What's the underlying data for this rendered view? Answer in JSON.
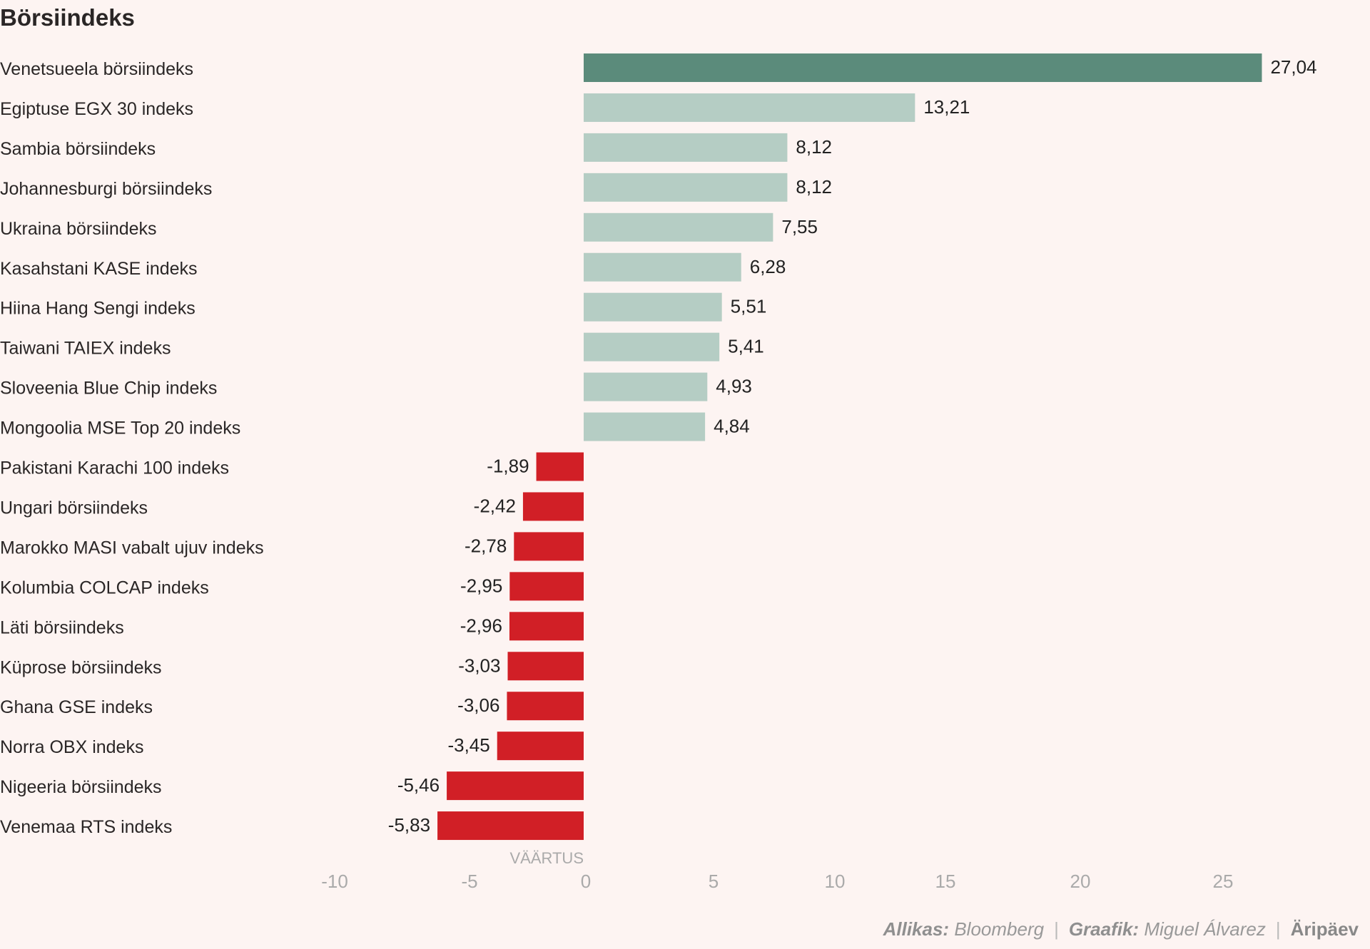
{
  "chart_data": {
    "type": "bar",
    "orientation": "horizontal",
    "title": "Börsiindeks",
    "xlabel": "VÄÄRTUS",
    "ylabel": "",
    "xlim": [
      -10,
      27.04
    ],
    "x_ticks": [
      "-10",
      "-5",
      "0",
      "5",
      "10",
      "15",
      "20",
      "25"
    ],
    "grid": false,
    "categories": [
      "Venetsueela börsiindeks",
      "Egiptuse EGX 30 indeks",
      "Sambia börsiindeks",
      "Johannesburgi börsiindeks",
      "Ukraina börsiindeks",
      "Kasahstani KASE indeks",
      "Hiina Hang Sengi indeks",
      "Taiwani TAIEX indeks",
      "Sloveenia Blue Chip indeks",
      "Mongoolia MSE Top 20 indeks",
      "Pakistani Karachi 100 indeks",
      "Ungari börsiindeks",
      "Marokko MASI vabalt ujuv indeks",
      "Kolumbia COLCAP indeks",
      "Läti börsiindeks",
      "Küprose börsiindeks",
      "Ghana GSE indeks",
      "Norra OBX indeks",
      "Nigeeria börsiindeks",
      "Venemaa RTS indeks"
    ],
    "values": [
      27.04,
      13.21,
      8.12,
      8.12,
      7.55,
      6.28,
      5.51,
      5.41,
      4.93,
      4.84,
      -1.89,
      -2.42,
      -2.78,
      -2.95,
      -2.96,
      -3.03,
      -3.06,
      -3.45,
      -5.46,
      -5.83
    ],
    "value_labels": [
      "27,04",
      "13,21",
      "8,12",
      "8,12",
      "7,55",
      "6,28",
      "5,51",
      "5,41",
      "4,93",
      "4,84",
      "-1,89",
      "-2,42",
      "-2,78",
      "-2,95",
      "-2,96",
      "-3,03",
      "-3,06",
      "-3,45",
      "-5,46",
      "-5,83"
    ],
    "colors": {
      "highlight": "#5b8b7b",
      "positive": "#b5cdc4",
      "negative": "#d11f26"
    }
  },
  "footer": {
    "source_label": "Allikas:",
    "source_value": "Bloomberg",
    "graphic_label": "Graafik:",
    "graphic_value": "Miguel Álvarez",
    "brand": "Äripäev"
  }
}
